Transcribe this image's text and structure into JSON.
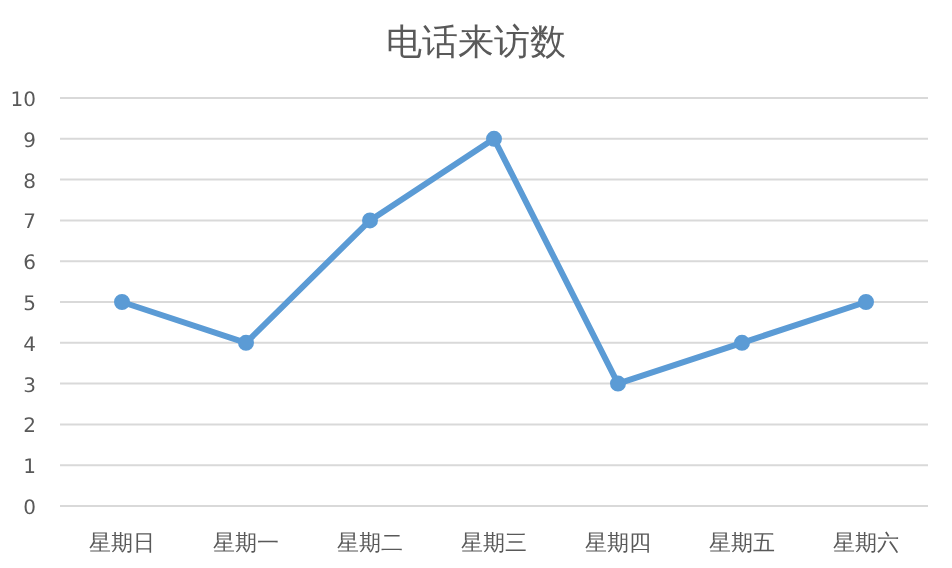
{
  "chart_data": {
    "type": "line",
    "title": "电话来访数",
    "categories": [
      "星期日",
      "星期一",
      "星期二",
      "星期三",
      "星期四",
      "星期五",
      "星期六"
    ],
    "values": [
      5,
      4,
      7,
      9,
      3,
      4,
      5
    ],
    "color": "#5b9bd5",
    "ylim": [
      0,
      10
    ],
    "yticks": [
      0,
      1,
      2,
      3,
      4,
      5,
      6,
      7,
      8,
      9,
      10
    ],
    "grid": "y",
    "marker": "circle"
  }
}
